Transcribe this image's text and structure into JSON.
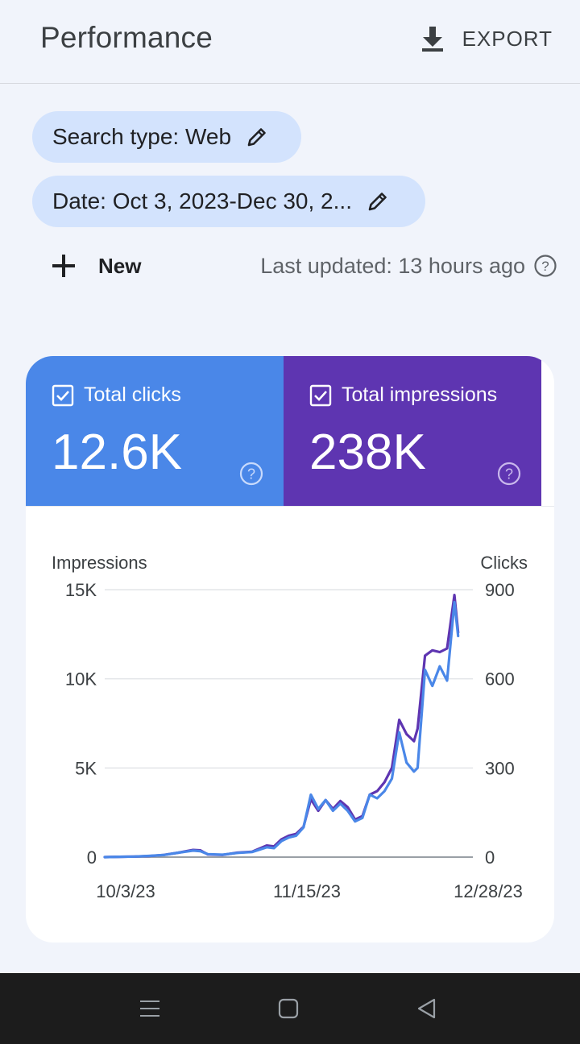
{
  "header": {
    "title": "Performance",
    "export_label": "EXPORT"
  },
  "filters": {
    "search_type": "Search type: Web",
    "date": "Date: Oct 3, 2023-Dec 30, 2..."
  },
  "toolbar": {
    "new_label": "New",
    "last_updated": "Last updated: 13 hours ago"
  },
  "metrics": {
    "clicks": {
      "label": "Total clicks",
      "value": "12.6K",
      "checked": true,
      "color": "#4a87e8"
    },
    "impressions": {
      "label": "Total impressions",
      "value": "238K",
      "checked": true,
      "color": "#5e35b1"
    }
  },
  "chart_data": {
    "type": "line",
    "left_axis_label": "Impressions",
    "right_axis_label": "Clicks",
    "left_ticks": [
      "15K",
      "10K",
      "5K",
      "0"
    ],
    "right_ticks": [
      "900",
      "600",
      "300",
      "0"
    ],
    "x_tick_labels": [
      "10/3/23",
      "11/15/23",
      "12/28/23"
    ],
    "left_ylim": [
      0,
      15000
    ],
    "right_ylim": [
      0,
      900
    ],
    "grid": true,
    "series": [
      {
        "name": "Impressions",
        "axis": "left",
        "color": "#5e35b1",
        "points": [
          [
            0,
            0
          ],
          [
            4,
            20
          ],
          [
            8,
            30
          ],
          [
            12,
            60
          ],
          [
            16,
            120
          ],
          [
            20,
            250
          ],
          [
            24,
            400
          ],
          [
            26,
            380
          ],
          [
            28,
            150
          ],
          [
            32,
            120
          ],
          [
            36,
            250
          ],
          [
            40,
            300
          ],
          [
            44,
            650
          ],
          [
            46,
            600
          ],
          [
            48,
            1000
          ],
          [
            50,
            1200
          ],
          [
            52,
            1300
          ],
          [
            54,
            1700
          ],
          [
            56,
            3250
          ],
          [
            58,
            2600
          ],
          [
            60,
            3200
          ],
          [
            62,
            2700
          ],
          [
            64,
            3150
          ],
          [
            66,
            2800
          ],
          [
            68,
            2100
          ],
          [
            70,
            2300
          ],
          [
            72,
            3500
          ],
          [
            74,
            3700
          ],
          [
            76,
            4200
          ],
          [
            78,
            5000
          ],
          [
            80,
            7700
          ],
          [
            82,
            6900
          ],
          [
            84,
            6500
          ],
          [
            85,
            7200
          ],
          [
            87,
            11300
          ],
          [
            89,
            11600
          ],
          [
            91,
            11500
          ],
          [
            93,
            11700
          ],
          [
            95,
            14700
          ],
          [
            96,
            12600
          ]
        ]
      },
      {
        "name": "Clicks",
        "axis": "right",
        "color": "#4a87e8",
        "points": [
          [
            0,
            0
          ],
          [
            4,
            1
          ],
          [
            8,
            2
          ],
          [
            12,
            4
          ],
          [
            16,
            7
          ],
          [
            20,
            15
          ],
          [
            24,
            22
          ],
          [
            26,
            20
          ],
          [
            28,
            10
          ],
          [
            32,
            8
          ],
          [
            36,
            14
          ],
          [
            40,
            17
          ],
          [
            44,
            33
          ],
          [
            46,
            30
          ],
          [
            48,
            54
          ],
          [
            50,
            66
          ],
          [
            52,
            72
          ],
          [
            54,
            100
          ],
          [
            56,
            210
          ],
          [
            58,
            162
          ],
          [
            60,
            192
          ],
          [
            62,
            156
          ],
          [
            64,
            180
          ],
          [
            66,
            156
          ],
          [
            68,
            120
          ],
          [
            70,
            132
          ],
          [
            72,
            210
          ],
          [
            74,
            198
          ],
          [
            76,
            222
          ],
          [
            78,
            264
          ],
          [
            80,
            420
          ],
          [
            82,
            318
          ],
          [
            84,
            288
          ],
          [
            85,
            300
          ],
          [
            87,
            630
          ],
          [
            89,
            576
          ],
          [
            91,
            642
          ],
          [
            93,
            594
          ],
          [
            95,
            858
          ],
          [
            96,
            744
          ]
        ]
      }
    ]
  }
}
